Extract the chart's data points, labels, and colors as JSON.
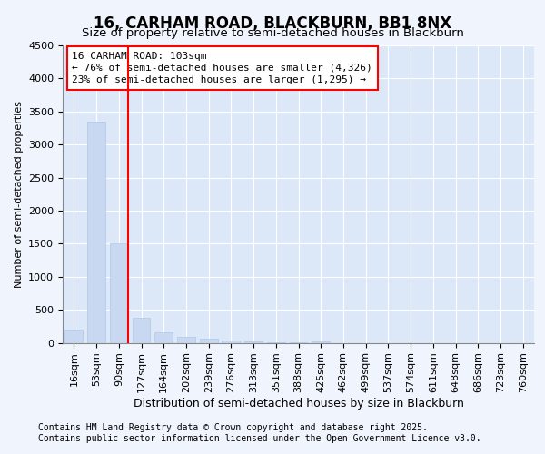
{
  "title1": "16, CARHAM ROAD, BLACKBURN, BB1 8NX",
  "title2": "Size of property relative to semi-detached houses in Blackburn",
  "xlabel": "Distribution of semi-detached houses by size in Blackburn",
  "ylabel": "Number of semi-detached properties",
  "categories": [
    "16sqm",
    "53sqm",
    "90sqm",
    "127sqm",
    "164sqm",
    "202sqm",
    "239sqm",
    "276sqm",
    "313sqm",
    "351sqm",
    "388sqm",
    "425sqm",
    "462sqm",
    "499sqm",
    "537sqm",
    "574sqm",
    "611sqm",
    "648sqm",
    "686sqm",
    "723sqm",
    "760sqm"
  ],
  "values": [
    200,
    3350,
    1500,
    380,
    155,
    90,
    62,
    40,
    20,
    8,
    5,
    18,
    0,
    0,
    0,
    0,
    0,
    0,
    0,
    0,
    0
  ],
  "bar_color": "#c8d8f0",
  "bar_edge_color": "#afc8e8",
  "vline_index": 2,
  "vline_color": "red",
  "ylim": [
    0,
    4500
  ],
  "yticks": [
    0,
    500,
    1000,
    1500,
    2000,
    2500,
    3000,
    3500,
    4000,
    4500
  ],
  "annotation_title": "16 CARHAM ROAD: 103sqm",
  "annotation_line1": "← 76% of semi-detached houses are smaller (4,326)",
  "annotation_line2": "23% of semi-detached houses are larger (1,295) →",
  "footer1": "Contains HM Land Registry data © Crown copyright and database right 2025.",
  "footer2": "Contains public sector information licensed under the Open Government Licence v3.0.",
  "bg_color": "#f0f4fc",
  "plot_bg_color": "#dce8f8",
  "title1_fontsize": 12,
  "title2_fontsize": 9.5,
  "xlabel_fontsize": 9,
  "ylabel_fontsize": 8,
  "tick_fontsize": 8,
  "annotation_fontsize": 8,
  "footer_fontsize": 7
}
